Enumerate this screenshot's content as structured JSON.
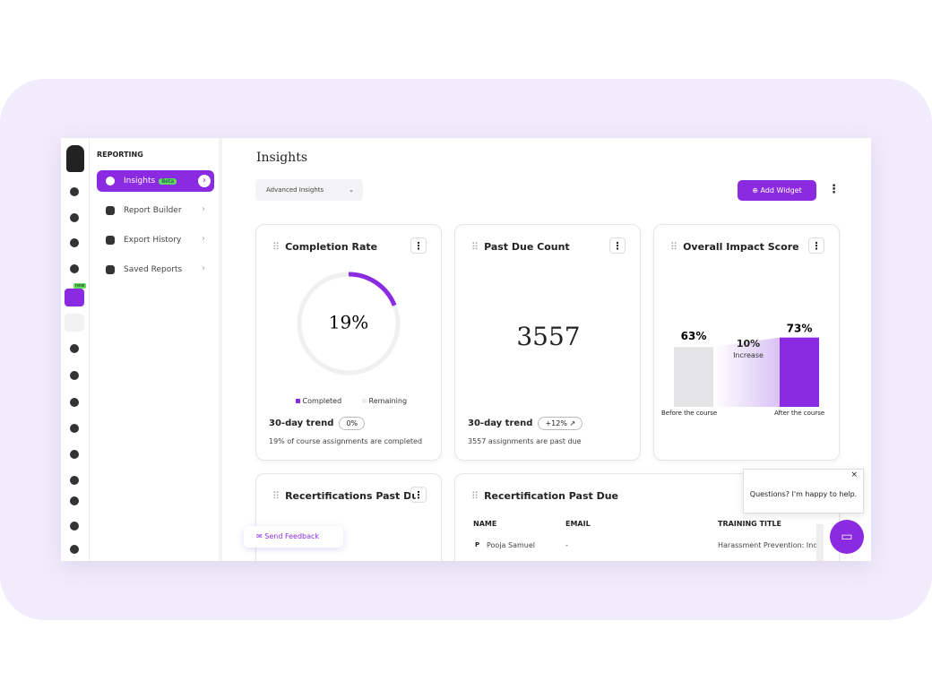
{
  "sidebar": {
    "heading": "REPORTING",
    "rail_badge": "new",
    "items": [
      {
        "label": "Insights",
        "badge": "Beta"
      },
      {
        "label": "Report Builder"
      },
      {
        "label": "Export History"
      },
      {
        "label": "Saved Reports"
      }
    ]
  },
  "header": {
    "title": "Insights",
    "dropdown": "Advanced Insights",
    "add_button": "Add Widget"
  },
  "cards": {
    "completion": {
      "title": "Completion Rate",
      "value": 19,
      "value_label": "19%",
      "legend": [
        "Completed",
        "Remaining"
      ],
      "trend_label": "30-day trend",
      "trend": "0%",
      "note": "19% of course assignments are completed"
    },
    "past_due": {
      "title": "Past Due Count",
      "value": 3557,
      "trend_label": "30-day trend",
      "trend": "+12% ↗",
      "note": "3557 assignments are past due"
    },
    "impact": {
      "title": "Overall Impact Score",
      "before": {
        "value": 63,
        "label": "63%",
        "caption": "Before the course"
      },
      "after": {
        "value": 73,
        "label": "73%",
        "caption": "After the course"
      },
      "increase": {
        "label": "10%",
        "caption": "Increase"
      }
    },
    "recert_small": {
      "title": "Recertifications Past Du..."
    },
    "recert_table": {
      "title": "Recertification Past Due",
      "columns": [
        "NAME",
        "EMAIL",
        "TRAINING TITLE"
      ],
      "row_initials": [
        "P"
      ],
      "rows": [
        [
          "Pooja Samuel",
          "-",
          "Harassment Prevention: Ind"
        ]
      ]
    }
  },
  "feedback": "Send Feedback",
  "chat": "Questions? I'm happy to help."
}
